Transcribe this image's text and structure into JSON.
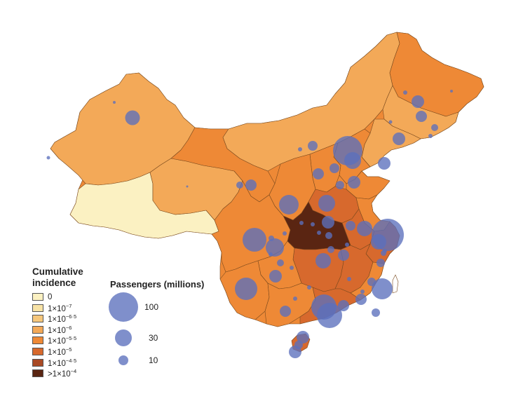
{
  "legend": {
    "incidence_title_line1": "Cumulative",
    "incidence_title_line2": "incidence",
    "incidence_classes": [
      {
        "base": "0",
        "exp": "",
        "color": "#fbf1c2"
      },
      {
        "base": "1×10",
        "exp": "−7",
        "color": "#f8e3a6"
      },
      {
        "base": "1×10",
        "exp": "−6·5",
        "color": "#f6c77c"
      },
      {
        "base": "1×10",
        "exp": "−6",
        "color": "#f3a958"
      },
      {
        "base": "1×10",
        "exp": "−5·5",
        "color": "#ee8936"
      },
      {
        "base": "1×10",
        "exp": "−5",
        "color": "#d7692d"
      },
      {
        "base": "1×10",
        "exp": "−4·5",
        "color": "#a94a25"
      },
      {
        "base": ">1×10",
        "exp": "−4",
        "color": "#5a2512"
      }
    ],
    "passengers_title": "Passengers (millions)",
    "passenger_sizes": [
      {
        "label": "100",
        "value": 100
      },
      {
        "label": "30",
        "value": 30
      },
      {
        "label": "10",
        "value": 10
      }
    ]
  },
  "colors": {
    "bubble": "#5b6fbd",
    "province_border": "#7a4a1e"
  }
}
